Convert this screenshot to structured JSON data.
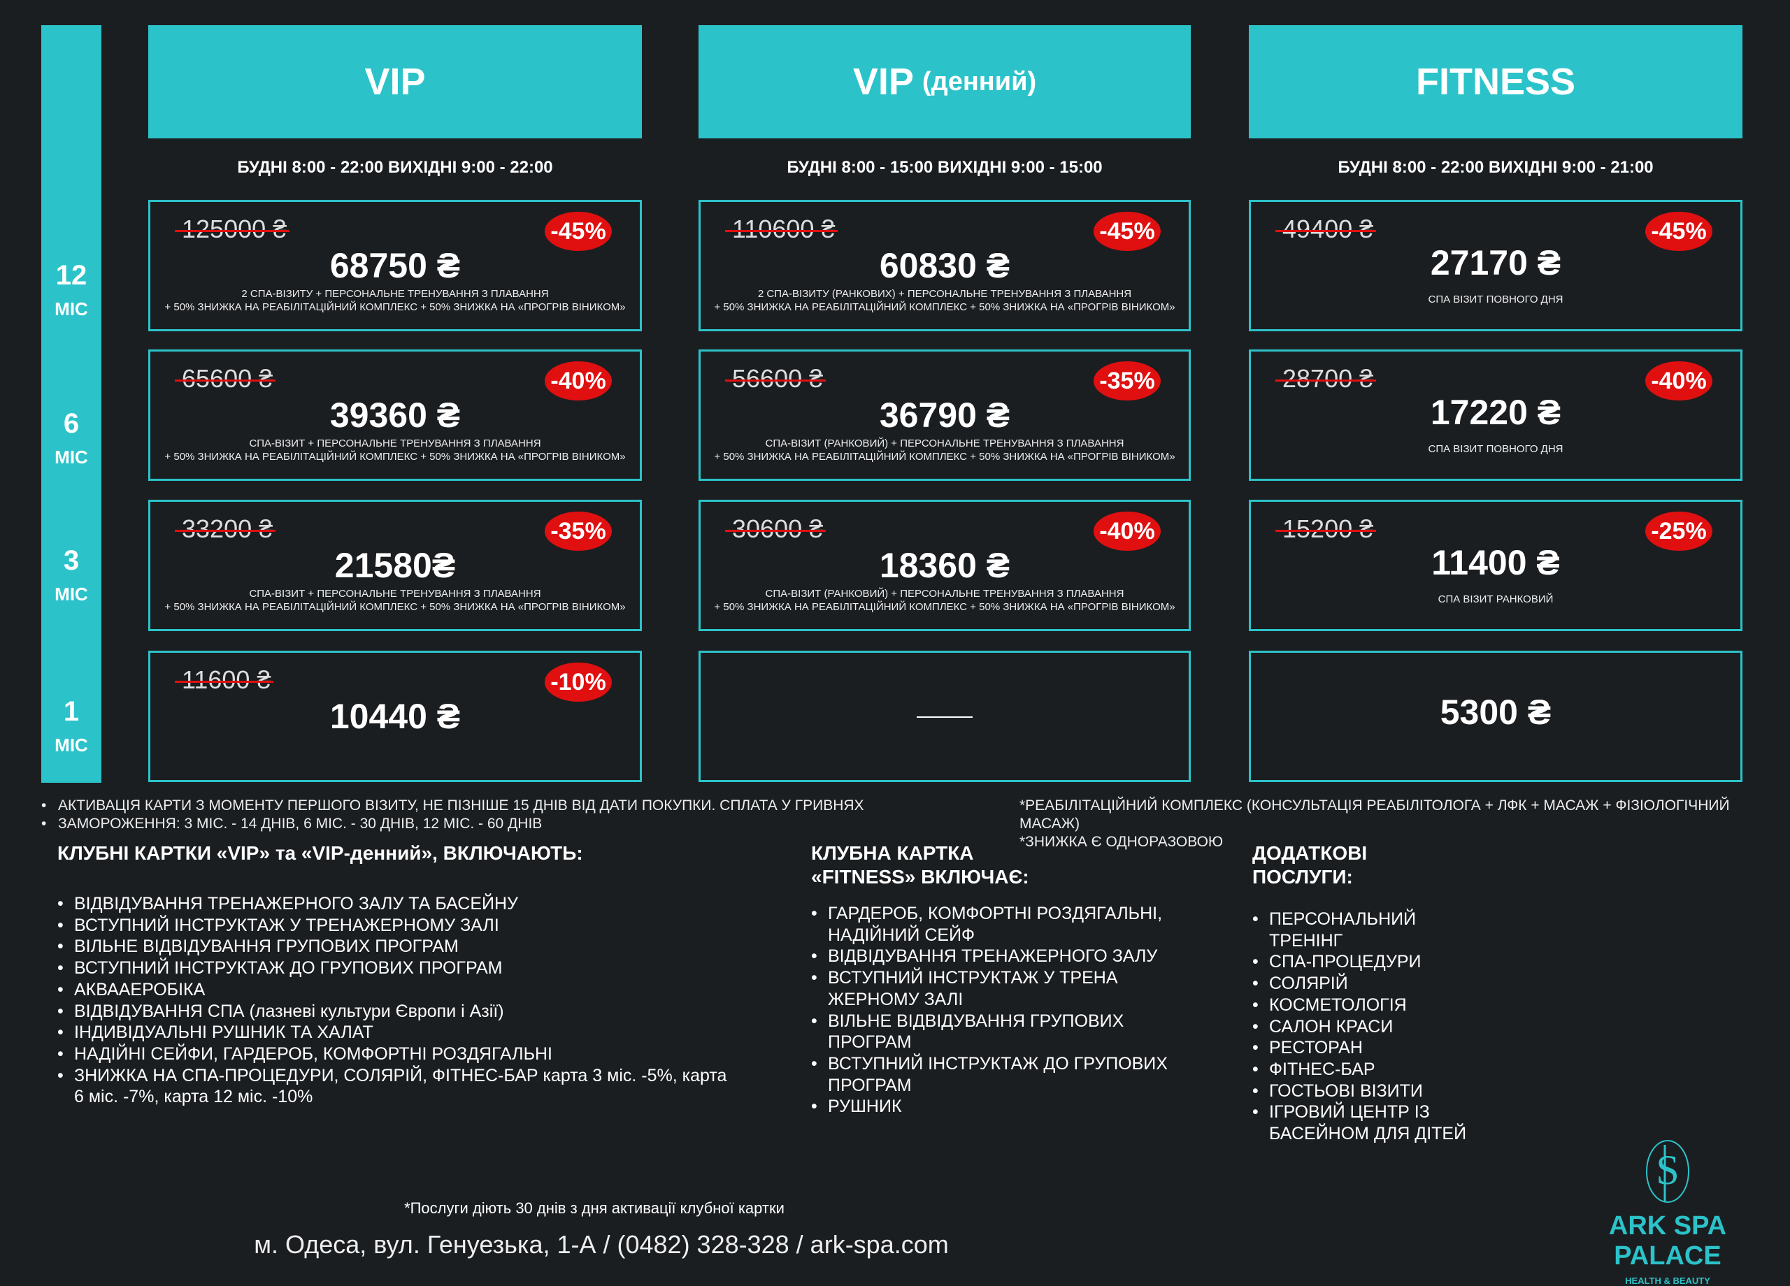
{
  "colors": {
    "accent": "#2bc3c9",
    "discount": "#e01010",
    "background": "#1b1e21"
  },
  "months": [
    {
      "n": "12",
      "u": "МІС"
    },
    {
      "n": "6",
      "u": "МІС"
    },
    {
      "n": "3",
      "u": "МІС"
    },
    {
      "n": "1",
      "u": "МІС"
    }
  ],
  "plans": [
    {
      "title": "VIP",
      "subtitle": "",
      "hours": "БУДНІ 8:00 - 22:00 ВИХІДНІ 9:00 - 22:00",
      "cards": [
        {
          "old": "125000 ₴",
          "badge": "-45%",
          "price": "68750 ₴",
          "desc1": "2 СПА-ВІЗИТУ + ПЕРСОНАЛЬНЕ ТРЕНУВАННЯ З ПЛАВАННЯ",
          "desc2": "+ 50% ЗНИЖКА НА РЕАБІЛІТАЦІЙНИЙ КОМПЛЕКС + 50% ЗНИЖКА НА «ПРОГРІВ ВІНИКОМ»"
        },
        {
          "old": "65600 ₴",
          "badge": "-40%",
          "price": "39360 ₴",
          "desc1": "СПА-ВІЗИТ + ПЕРСОНАЛЬНЕ ТРЕНУВАННЯ З ПЛАВАННЯ",
          "desc2": "+ 50% ЗНИЖКА НА РЕАБІЛІТАЦІЙНИЙ КОМПЛЕКС + 50% ЗНИЖКА НА «ПРОГРІВ ВІНИКОМ»"
        },
        {
          "old": "33200 ₴",
          "badge": "-35%",
          "price": "21580₴",
          "desc1": "СПА-ВІЗИТ + ПЕРСОНАЛЬНЕ ТРЕНУВАННЯ З ПЛАВАННЯ",
          "desc2": "+ 50% ЗНИЖКА НА РЕАБІЛІТАЦІЙНИЙ КОМПЛЕКС + 50% ЗНИЖКА НА «ПРОГРІВ ВІНИКОМ»"
        },
        {
          "old": "11600 ₴",
          "badge": "-10%",
          "price": "10440 ₴",
          "desc1": "",
          "desc2": ""
        }
      ]
    },
    {
      "title": "VIP",
      "subtitle": "(денний)",
      "hours": "БУДНІ 8:00 - 15:00 ВИХІДНІ 9:00 - 15:00",
      "cards": [
        {
          "old": "110600 ₴",
          "badge": "-45%",
          "price": "60830 ₴",
          "desc1": "2 СПА-ВІЗИТУ (РАНКОВИХ) + ПЕРСОНАЛЬНЕ ТРЕНУВАННЯ З ПЛАВАННЯ",
          "desc2": "+ 50% ЗНИЖКА НА РЕАБІЛІТАЦІЙНИЙ КОМПЛЕКС + 50% ЗНИЖКА НА «ПРОГРІВ ВІНИКОМ»"
        },
        {
          "old": "56600 ₴",
          "badge": "-35%",
          "price": "36790 ₴",
          "desc1": "СПА-ВІЗИТ (РАНКОВИЙ) + ПЕРСОНАЛЬНЕ ТРЕНУВАННЯ З ПЛАВАННЯ",
          "desc2": "+ 50% ЗНИЖКА НА РЕАБІЛІТАЦІЙНИЙ КОМПЛЕКС + 50% ЗНИЖКА НА «ПРОГРІВ ВІНИКОМ»"
        },
        {
          "old": "30600 ₴",
          "badge": "-40%",
          "price": "18360 ₴",
          "desc1": "СПА-ВІЗИТ (РАНКОВИЙ) + ПЕРСОНАЛЬНЕ ТРЕНУВАННЯ З ПЛАВАННЯ",
          "desc2": "+ 50% ЗНИЖКА НА РЕАБІЛІТАЦІЙНИЙ КОМПЛЕКС + 50% ЗНИЖКА НА «ПРОГРІВ ВІНИКОМ»"
        },
        {
          "empty": true
        }
      ]
    },
    {
      "title": "FITNESS",
      "subtitle": "",
      "hours": "БУДНІ 8:00 - 22:00 ВИХІДНІ 9:00 - 21:00",
      "cards": [
        {
          "old": "49400 ₴",
          "badge": "-45%",
          "price": "27170 ₴",
          "desc1": "СПА ВІЗИТ ПОВНОГО ДНЯ",
          "desc2": ""
        },
        {
          "old": "28700 ₴",
          "badge": "-40%",
          "price": "17220 ₴",
          "desc1": "СПА ВІЗИТ ПОВНОГО ДНЯ",
          "desc2": ""
        },
        {
          "old": "15200 ₴",
          "badge": "-25%",
          "price": "11400 ₴",
          "desc1": "СПА ВІЗИТ РАНКОВИЙ",
          "desc2": ""
        },
        {
          "old": "",
          "badge": "",
          "price": "5300 ₴",
          "desc1": "",
          "desc2": ""
        }
      ]
    }
  ],
  "notes_left": [
    "АКТИВАЦІЯ КАРТИ З МОМЕНТУ ПЕРШОГО ВІЗИТУ, НЕ ПІЗНІШЕ 15 ДНІВ ВІД ДАТИ ПОКУПКИ. СПЛАТА У ГРИВНЯХ",
    "ЗАМОРОЖЕННЯ: 3 МІС. - 14 ДНІВ, 6 МІС. - 30 ДНІВ, 12 МІС. - 60 ДНІВ"
  ],
  "notes_right": [
    "*РЕАБІЛІТАЦІЙНИЙ КОМПЛЕКС (КОНСУЛЬТАЦІЯ РЕАБІЛІТОЛОГА + ЛФК + МАСАЖ + ФІЗІОЛОГІЧНИЙ МАСАЖ)",
    "*ЗНИЖКА Є ОДНОРАЗОВОЮ"
  ],
  "vip_section": {
    "title": "КЛУБНІ КАРТКИ «VIP» та «VIP-денний», ВКЛЮЧАЮТЬ:",
    "items": [
      "ВІДВІДУВАННЯ ТРЕНАЖЕРНОГО ЗАЛУ ТА БАСЕЙНУ",
      "ВСТУПНИЙ ІНСТРУКТАЖ У ТРЕНАЖЕРНОМУ ЗАЛІ",
      "ВІЛЬНЕ ВІДВІДУВАННЯ ГРУПОВИХ ПРОГРАМ",
      "ВСТУПНИЙ ІНСТРУКТАЖ ДО ГРУПОВИХ ПРОГРАМ",
      "АКВААЕРОБІКА",
      "ВІДВІДУВАННЯ СПА (лазневі культури Європи і Азії)",
      "ІНДИВІДУАЛЬНІ РУШНИК ТА ХАЛАТ",
      "НАДІЙНІ СЕЙФИ, ГАРДЕРОБ, КОМФОРТНІ РОЗДЯГАЛЬНІ",
      "ЗНИЖКА НА СПА-ПРОЦЕДУРИ, СОЛЯРІЙ, ФІТНЕС-БАР карта 3 міс. -5%, карта 6 міс. -7%, карта 12 міс. -10%"
    ]
  },
  "fitness_section": {
    "title": "КЛУБНА КАРТКА «FITNESS» ВКЛЮЧАЄ:",
    "items": [
      "ГАРДЕРОБ, КОМФОРТНІ РОЗДЯГАЛЬНІ, НАДІЙНИЙ СЕЙФ",
      "ВІДВІДУВАННЯ ТРЕНАЖЕРНОГО ЗАЛУ",
      "ВСТУПНИЙ ІНСТРУКТАЖ У ТРЕНА ЖЕРНОМУ ЗАЛІ",
      "ВІЛЬНЕ ВІДВІДУВАННЯ ГРУПОВИХ ПРОГРАМ",
      "ВСТУПНИЙ ІНСТРУКТАЖ ДО ГРУПОВИХ ПРОГРАМ",
      "РУШНИК"
    ]
  },
  "extra_section": {
    "title": "ДОДАТКОВІ ПОСЛУГИ:",
    "items": [
      "ПЕРСОНАЛЬНИЙ ТРЕНІНГ",
      "СПА-ПРОЦЕДУРИ",
      "СОЛЯРІЙ",
      "КОСМЕТОЛОГІЯ",
      "САЛОН КРАСИ",
      "РЕСТОРАН",
      "ФІТНЕС-БАР",
      "ГОСТЬОВІ ВІЗИТИ",
      "ІГРОВИЙ ЦЕНТР ІЗ БАСЕЙНОМ ДЛЯ ДІТЕЙ"
    ]
  },
  "footer": {
    "validity": "*Послуги діють 30 днів з дня активації клубної картки",
    "address": "м. Одеса, вул. Генуезька, 1-А / (0482) 328-328 / ark-spa.com"
  },
  "logo": {
    "name": "ARK SPA PALACE",
    "tagline": "HEALTH & BEAUTY",
    "monogram": "SP"
  }
}
